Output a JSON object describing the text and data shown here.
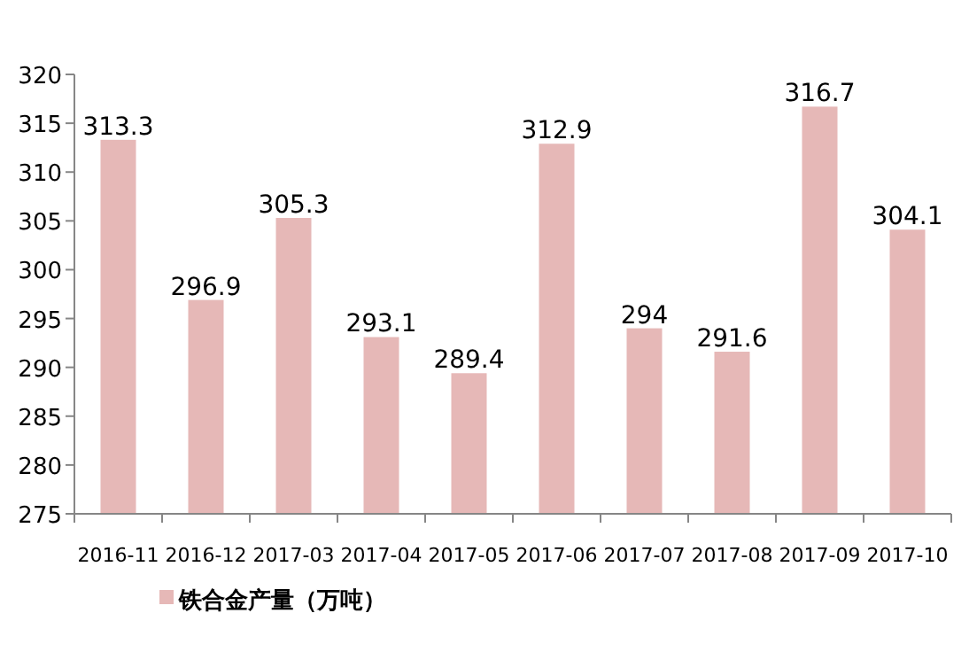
{
  "chart_data": {
    "type": "bar",
    "categories": [
      "2016-11",
      "2016-12",
      "2017-03",
      "2017-04",
      "2017-05",
      "2017-06",
      "2017-07",
      "2017-08",
      "2017-09",
      "2017-10"
    ],
    "series": [
      {
        "name": "铁合金产量（万吨）",
        "color": "#e6b8b7",
        "values": [
          313.3,
          296.9,
          305.3,
          293.1,
          289.4,
          312.9,
          294,
          291.6,
          316.7,
          304.1
        ]
      }
    ],
    "ylim": [
      275,
      320
    ],
    "yticks": [
      275,
      280,
      285,
      290,
      295,
      300,
      305,
      310,
      315,
      320
    ],
    "data_labels": true,
    "legend": "bottom",
    "grid": false
  }
}
